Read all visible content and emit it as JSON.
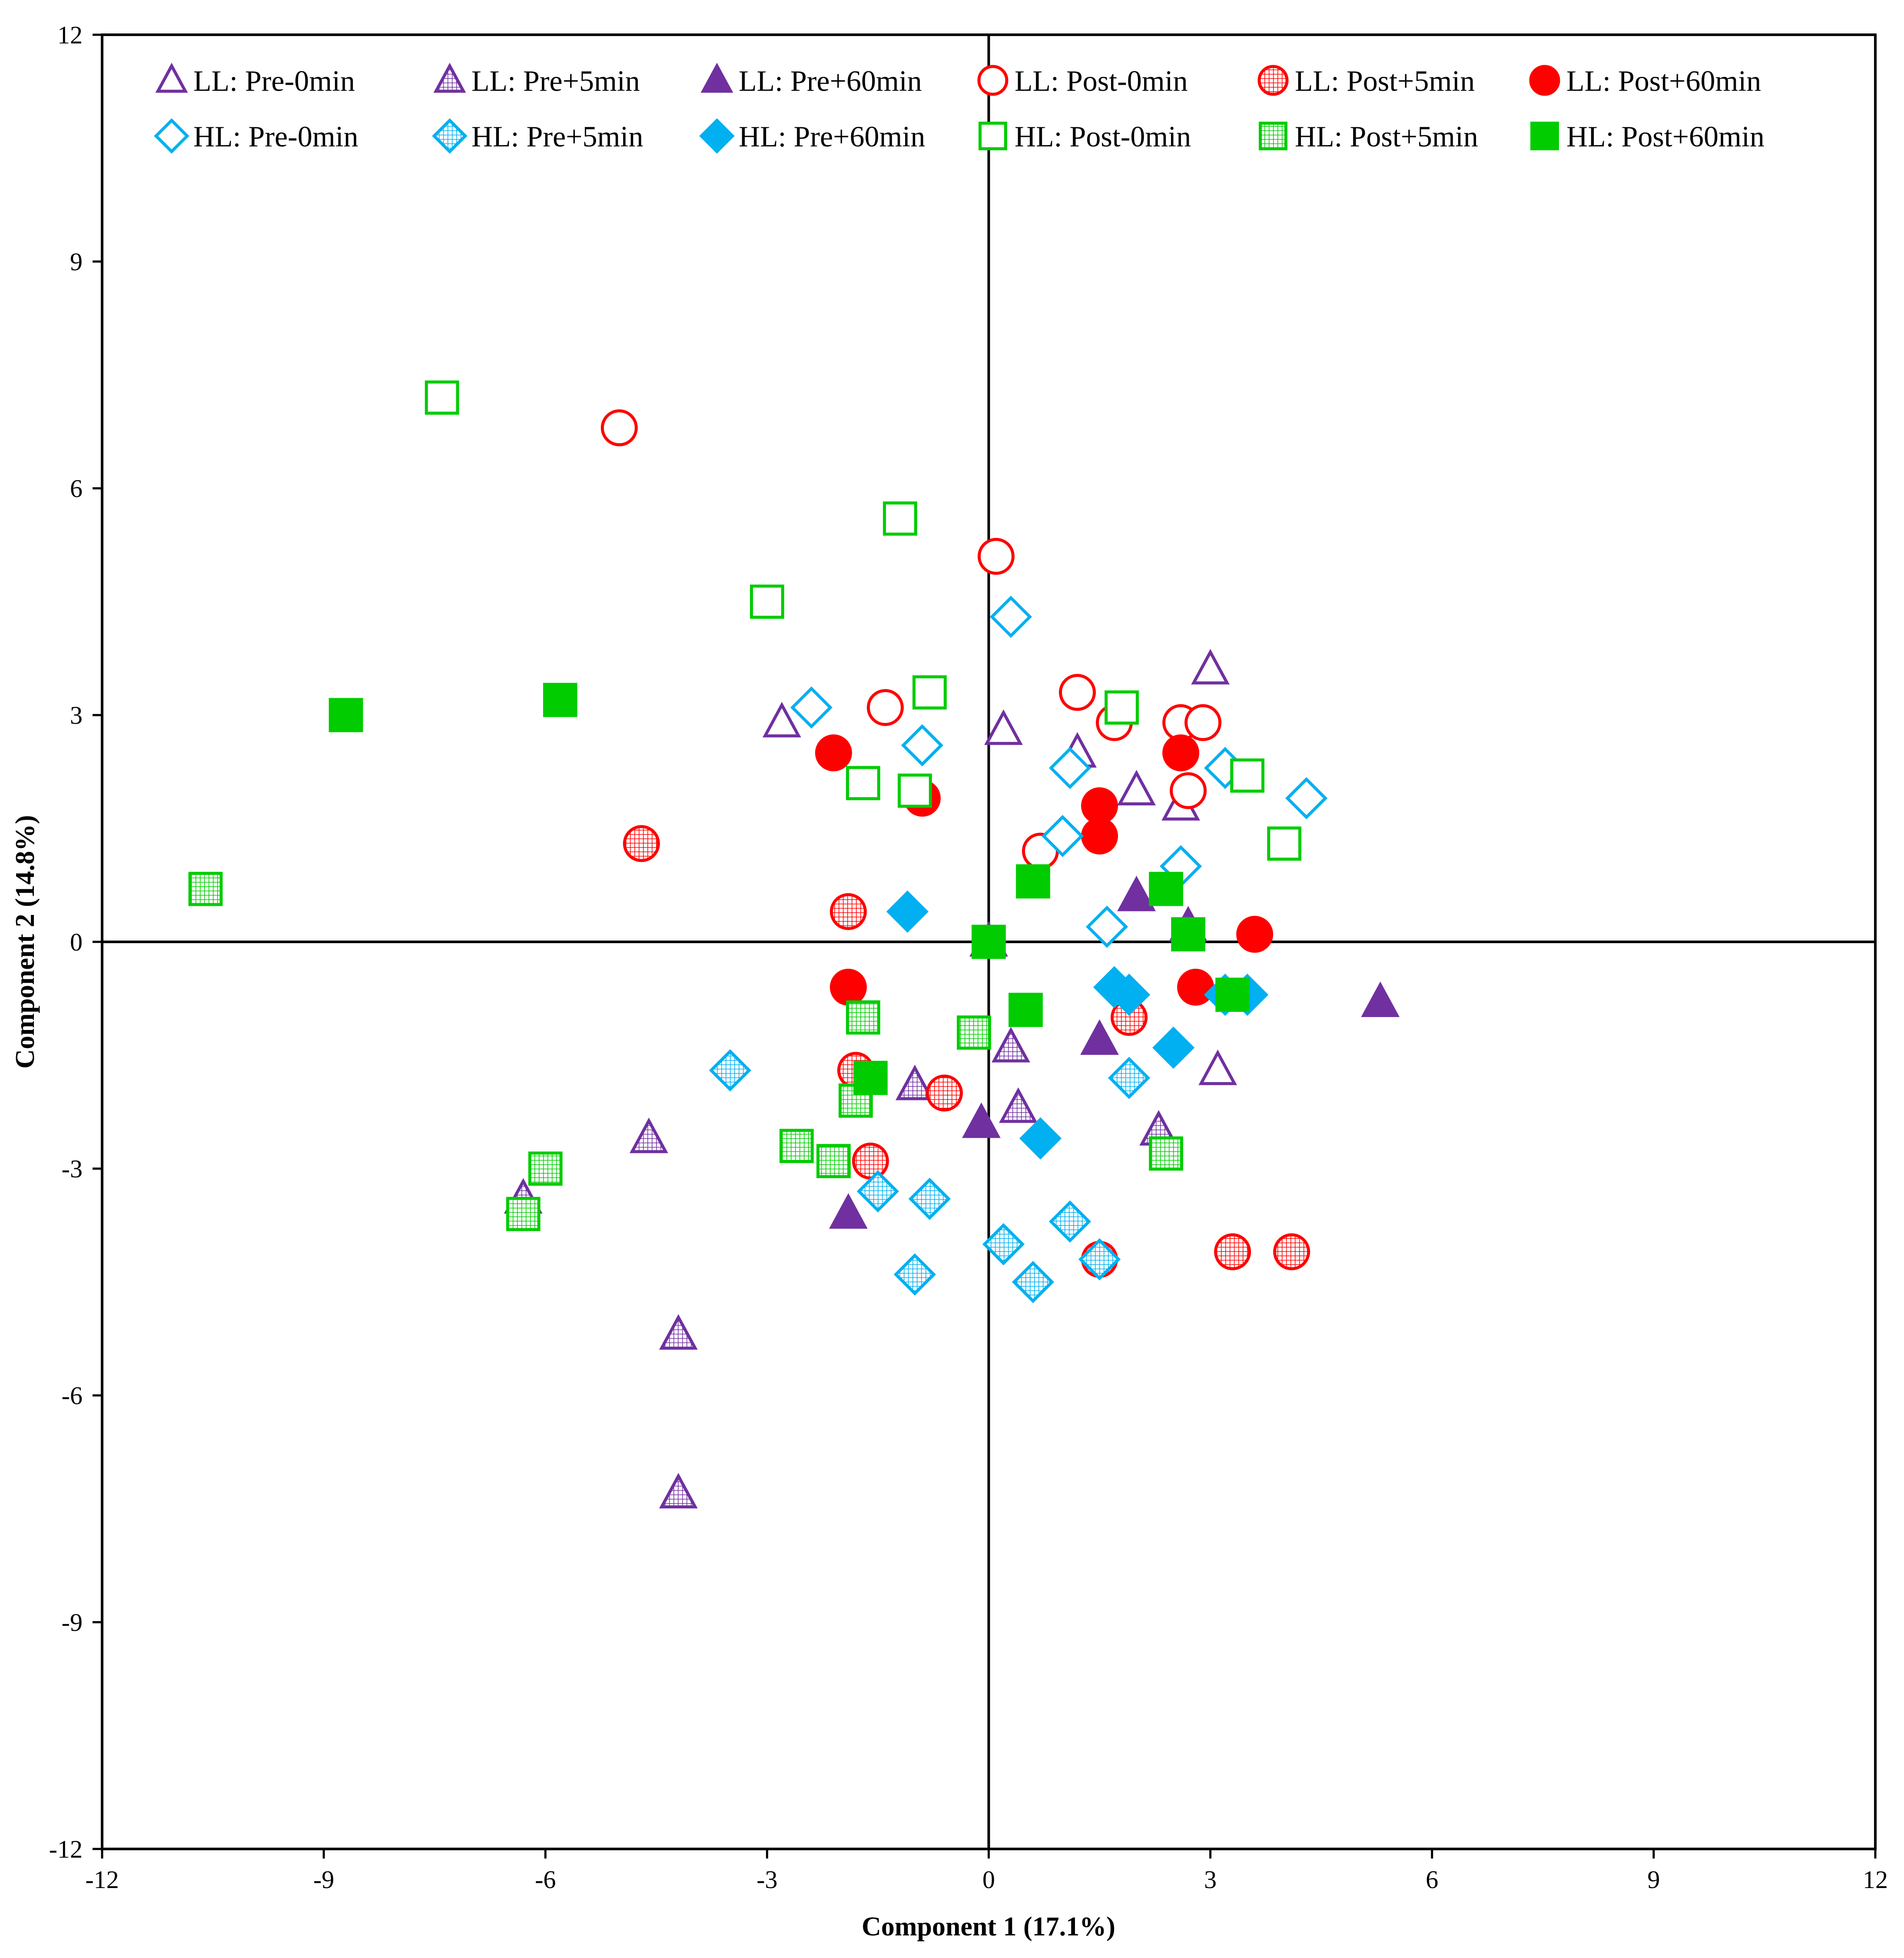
{
  "chart_data": {
    "type": "scatter",
    "xlabel": "Component 1 (17.1%)",
    "ylabel": "Component 2 (14.8%)",
    "xlim": [
      -12,
      12
    ],
    "ylim": [
      -12,
      12
    ],
    "xticks": [
      -12,
      -9,
      -6,
      -3,
      0,
      3,
      6,
      9,
      12
    ],
    "yticks": [
      -12,
      -9,
      -6,
      -3,
      0,
      3,
      6,
      9,
      12
    ],
    "legend_position": "top",
    "colors": {
      "purple": "#7030A0",
      "red": "#FF0000",
      "blue": "#00B0F0",
      "green": "#00CC00"
    },
    "series": [
      {
        "name": "LL: Pre-0min",
        "marker": "triangle",
        "fill": "open",
        "color": "#7030A0",
        "points": [
          [
            -2.8,
            2.9
          ],
          [
            0.2,
            2.8
          ],
          [
            1.2,
            2.5
          ],
          [
            2.0,
            2.0
          ],
          [
            2.6,
            1.8
          ],
          [
            3.0,
            3.6
          ],
          [
            3.1,
            -1.7
          ],
          [
            0.0,
            0.0
          ]
        ]
      },
      {
        "name": "LL: Pre+5min",
        "marker": "triangle",
        "fill": "hatched",
        "color": "#7030A0",
        "points": [
          [
            -4.6,
            -2.6
          ],
          [
            -1.0,
            -1.9
          ],
          [
            0.3,
            -1.4
          ],
          [
            0.4,
            -2.2
          ],
          [
            2.3,
            -2.5
          ],
          [
            -6.3,
            -3.4
          ],
          [
            -4.2,
            -5.2
          ],
          [
            -4.2,
            -7.3
          ]
        ]
      },
      {
        "name": "LL: Pre+60min",
        "marker": "triangle",
        "fill": "solid",
        "color": "#7030A0",
        "points": [
          [
            -1.9,
            -3.6
          ],
          [
            -0.1,
            -2.4
          ],
          [
            1.5,
            -1.3
          ],
          [
            2.0,
            0.6
          ],
          [
            2.7,
            0.2
          ],
          [
            5.3,
            -0.8
          ]
        ]
      },
      {
        "name": "LL: Post-0min",
        "marker": "circle",
        "fill": "open",
        "color": "#FF0000",
        "points": [
          [
            -5.0,
            6.8
          ],
          [
            -1.4,
            3.1
          ],
          [
            0.1,
            5.1
          ],
          [
            1.2,
            3.3
          ],
          [
            1.7,
            2.9
          ],
          [
            2.6,
            2.9
          ],
          [
            2.9,
            2.9
          ],
          [
            2.7,
            2.0
          ],
          [
            0.7,
            1.2
          ]
        ]
      },
      {
        "name": "LL: Post+5min",
        "marker": "circle",
        "fill": "hatched",
        "color": "#FF0000",
        "points": [
          [
            -4.7,
            1.3
          ],
          [
            -1.9,
            0.4
          ],
          [
            -1.8,
            -1.7
          ],
          [
            -1.6,
            -2.9
          ],
          [
            -0.6,
            -2.0
          ],
          [
            1.9,
            -1.0
          ],
          [
            1.5,
            -4.2
          ],
          [
            3.3,
            -4.1
          ],
          [
            4.1,
            -4.1
          ]
        ]
      },
      {
        "name": "LL: Post+60min",
        "marker": "circle",
        "fill": "solid",
        "color": "#FF0000",
        "points": [
          [
            -2.1,
            2.5
          ],
          [
            -0.9,
            1.9
          ],
          [
            1.5,
            1.8
          ],
          [
            1.5,
            1.4
          ],
          [
            2.6,
            2.5
          ],
          [
            3.6,
            0.1
          ],
          [
            -1.9,
            -0.6
          ],
          [
            2.8,
            -0.6
          ]
        ]
      },
      {
        "name": "HL: Pre-0min",
        "marker": "diamond",
        "fill": "open",
        "color": "#00B0F0",
        "points": [
          [
            -2.4,
            3.1
          ],
          [
            -0.9,
            2.6
          ],
          [
            0.3,
            4.3
          ],
          [
            1.1,
            2.3
          ],
          [
            1.0,
            1.4
          ],
          [
            1.6,
            0.2
          ],
          [
            2.6,
            1.0
          ],
          [
            3.2,
            2.3
          ],
          [
            4.3,
            1.9
          ]
        ]
      },
      {
        "name": "HL: Pre+5min",
        "marker": "diamond",
        "fill": "hatched",
        "color": "#00B0F0",
        "points": [
          [
            -3.5,
            -1.7
          ],
          [
            -1.5,
            -3.3
          ],
          [
            -0.8,
            -3.4
          ],
          [
            -1.0,
            -4.4
          ],
          [
            0.2,
            -4.0
          ],
          [
            0.6,
            -4.5
          ],
          [
            1.1,
            -3.7
          ],
          [
            1.5,
            -4.2
          ],
          [
            1.9,
            -1.8
          ]
        ]
      },
      {
        "name": "HL: Pre+60min",
        "marker": "diamond",
        "fill": "solid",
        "color": "#00B0F0",
        "points": [
          [
            -1.1,
            0.4
          ],
          [
            0.7,
            -2.6
          ],
          [
            1.7,
            -0.6
          ],
          [
            1.9,
            -0.7
          ],
          [
            2.5,
            -1.4
          ],
          [
            3.2,
            -0.7
          ],
          [
            3.5,
            -0.7
          ]
        ]
      },
      {
        "name": "HL: Post-0min",
        "marker": "square",
        "fill": "open",
        "color": "#00CC00",
        "points": [
          [
            -7.4,
            7.2
          ],
          [
            -1.2,
            5.6
          ],
          [
            -3.0,
            4.5
          ],
          [
            -0.8,
            3.3
          ],
          [
            -1.7,
            2.1
          ],
          [
            -1.0,
            2.0
          ],
          [
            1.8,
            3.1
          ],
          [
            3.5,
            2.2
          ],
          [
            4.0,
            1.3
          ]
        ]
      },
      {
        "name": "HL: Post+5min",
        "marker": "square",
        "fill": "hatched",
        "color": "#00CC00",
        "points": [
          [
            -10.6,
            0.7
          ],
          [
            -6.0,
            -3.0
          ],
          [
            -6.3,
            -3.6
          ],
          [
            -2.6,
            -2.7
          ],
          [
            -2.1,
            -2.9
          ],
          [
            -1.8,
            -2.1
          ],
          [
            -1.7,
            -1.0
          ],
          [
            -0.2,
            -1.2
          ],
          [
            2.4,
            -2.8
          ]
        ]
      },
      {
        "name": "HL: Post+60min",
        "marker": "square",
        "fill": "solid",
        "color": "#00CC00",
        "points": [
          [
            -8.7,
            3.0
          ],
          [
            -5.8,
            3.2
          ],
          [
            0.6,
            0.8
          ],
          [
            0.0,
            0.0
          ],
          [
            2.4,
            0.7
          ],
          [
            2.7,
            0.1
          ],
          [
            0.5,
            -0.9
          ],
          [
            3.3,
            -0.7
          ],
          [
            -1.6,
            -1.8
          ]
        ]
      }
    ]
  }
}
